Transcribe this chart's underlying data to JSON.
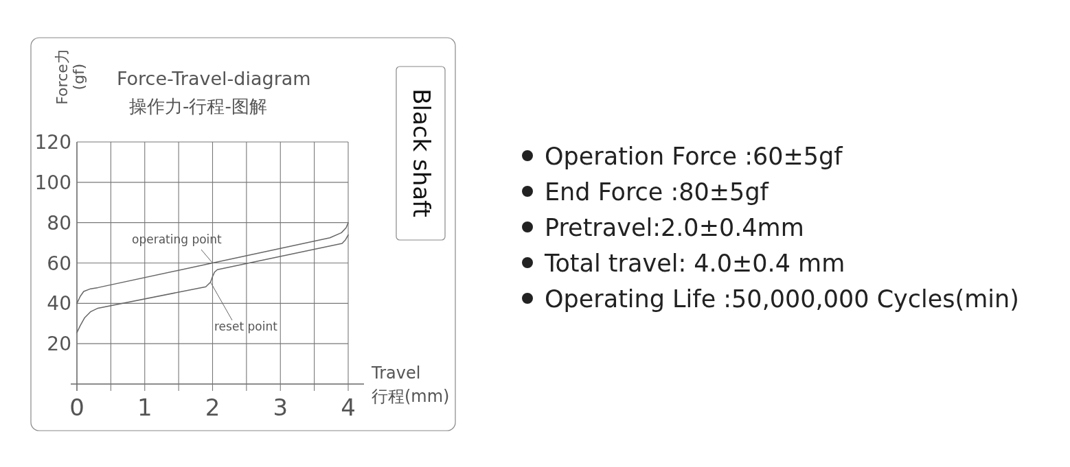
{
  "chart_data": [
    {
      "type": "line",
      "title": "Force-Travel-diagram",
      "subtitle": "操作力-行程-图解",
      "xlabel": "Travel\n行程(mm)",
      "ylabel": "Force力\n(gf)",
      "xlim": [
        0,
        4
      ],
      "ylim": [
        0,
        120
      ],
      "xticks": [
        0,
        {
          "value": 0.5,
          "label": null
        },
        1,
        {
          "value": 1.5,
          "label": null
        },
        2,
        {
          "value": 2.5,
          "label": null
        },
        3,
        {
          "value": 3.5,
          "label": null
        },
        4
      ],
      "yticks": [
        20,
        40,
        60,
        80,
        100,
        120
      ],
      "grid": true,
      "series": [
        {
          "color": "#666666",
          "x": [
            0,
            0.05,
            0.1,
            0.2,
            0.31,
            2,
            3.73,
            3.9,
            3.97,
            4
          ],
          "values": [
            40,
            43.5,
            45.9,
            47.2,
            47.8,
            60,
            72.5,
            75,
            77.5,
            80
          ]
        },
        {
          "color": "#666666",
          "x": [
            0,
            0.05,
            0.115,
            0.2,
            0.31,
            1.9,
            1.97,
            2,
            2.03,
            2.07,
            3.91,
            3.96,
            4
          ],
          "values": [
            25.5,
            29,
            32.9,
            35.8,
            37.6,
            48.2,
            50.5,
            53.3,
            55.5,
            56.7,
            69.7,
            71.5,
            73.9
          ]
        }
      ],
      "annotations": [
        {
          "text": "operating point",
          "x": 2,
          "y": 60
        },
        {
          "text": "reset point",
          "x": 1.97,
          "y": 50.5
        },
        "Black shaft"
      ]
    },
    {
      "type": "other",
      "annotations": [
        "Operation Force :60±5gf",
        "End Force :80±5gf",
        "Pretravel:2.0±0.4mm",
        "Total travel: 4.0±0.4 mm",
        "Operating Life :50,000,000 Cycles(min)"
      ]
    }
  ]
}
